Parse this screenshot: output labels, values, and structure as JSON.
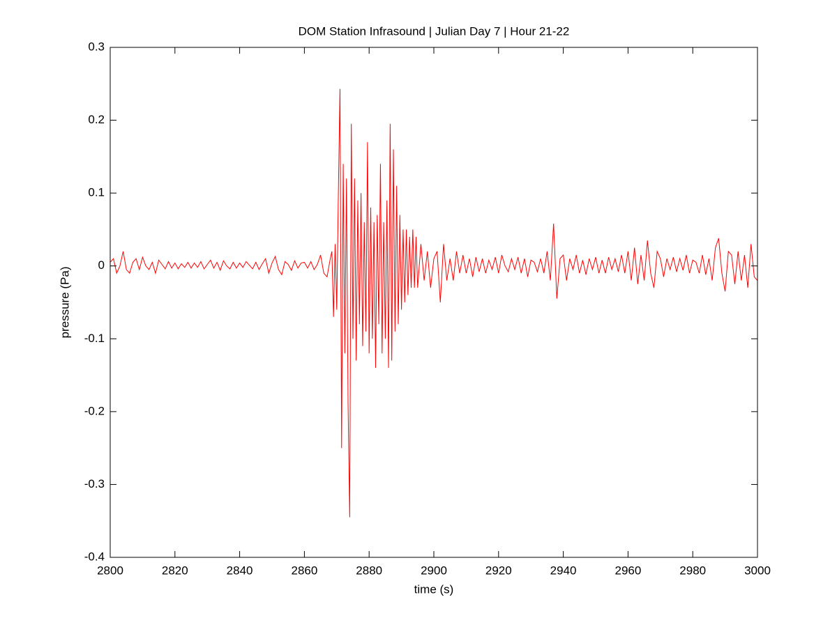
{
  "chart_data": {
    "type": "line",
    "title": "DOM Station Infrasound | Julian Day 7 | Hour 21-22",
    "xlabel": "time (s)",
    "ylabel": "pressure (Pa)",
    "xlim": [
      2800,
      3000
    ],
    "ylim": [
      -0.4,
      0.3
    ],
    "xticks": [
      2800,
      2820,
      2840,
      2860,
      2880,
      2900,
      2920,
      2940,
      2960,
      2980,
      3000
    ],
    "yticks": [
      -0.4,
      -0.3,
      -0.2,
      -0.1,
      0,
      0.1,
      0.2,
      0.3
    ],
    "grid": false,
    "series": [
      {
        "color": "#ff0000",
        "x": [
          2800,
          2801,
          2802,
          2803,
          2804,
          2805,
          2806,
          2807,
          2808,
          2809,
          2810,
          2811,
          2812,
          2813,
          2814,
          2815,
          2816,
          2817,
          2818,
          2819,
          2820,
          2821,
          2822,
          2823,
          2824,
          2825,
          2826,
          2827,
          2828,
          2829,
          2830,
          2831,
          2832,
          2833,
          2834,
          2835,
          2836,
          2837,
          2838,
          2839,
          2840,
          2841,
          2842,
          2843,
          2844,
          2845,
          2846,
          2847,
          2848,
          2849,
          2850,
          2851,
          2852,
          2853,
          2854,
          2855,
          2856,
          2857,
          2858,
          2859,
          2860,
          2861,
          2862,
          2863,
          2864,
          2865,
          2866,
          2867,
          2868,
          2868.5,
          2869,
          2869.5,
          2870,
          2870.5,
          2871,
          2871.5,
          2872,
          2872.5,
          2873,
          2873.5,
          2874,
          2874.5,
          2875,
          2875.5,
          2876,
          2876.5,
          2877,
          2877.5,
          2878,
          2878.5,
          2879,
          2879.5,
          2880,
          2880.5,
          2881,
          2881.5,
          2882,
          2882.5,
          2883,
          2883.5,
          2884,
          2884.5,
          2885,
          2885.5,
          2886,
          2886.5,
          2887,
          2887.5,
          2888,
          2888.5,
          2889,
          2889.5,
          2890,
          2890.5,
          2891,
          2891.5,
          2892,
          2892.5,
          2893,
          2893.5,
          2894,
          2894.5,
          2895,
          2896,
          2897,
          2898,
          2899,
          2900,
          2901,
          2902,
          2903,
          2904,
          2905,
          2906,
          2907,
          2908,
          2909,
          2910,
          2911,
          2912,
          2913,
          2914,
          2915,
          2916,
          2917,
          2918,
          2919,
          2920,
          2921,
          2922,
          2923,
          2924,
          2925,
          2926,
          2927,
          2928,
          2929,
          2930,
          2931,
          2932,
          2933,
          2934,
          2935,
          2936,
          2937,
          2938,
          2939,
          2940,
          2941,
          2942,
          2943,
          2944,
          2945,
          2946,
          2947,
          2948,
          2949,
          2950,
          2951,
          2952,
          2953,
          2954,
          2955,
          2956,
          2957,
          2958,
          2959,
          2960,
          2961,
          2962,
          2963,
          2964,
          2965,
          2966,
          2967,
          2968,
          2969,
          2970,
          2971,
          2972,
          2973,
          2974,
          2975,
          2976,
          2977,
          2978,
          2979,
          2980,
          2981,
          2982,
          2983,
          2984,
          2985,
          2986,
          2987,
          2988,
          2989,
          2990,
          2991,
          2992,
          2993,
          2994,
          2995,
          2996,
          2997,
          2998,
          2999,
          3000
        ],
        "values": [
          0.005,
          0.01,
          -0.01,
          0.0,
          0.02,
          -0.005,
          -0.01,
          0.005,
          0.01,
          -0.005,
          0.012,
          0.0,
          -0.005,
          0.005,
          -0.01,
          0.008,
          0.002,
          -0.004,
          0.006,
          -0.003,
          0.004,
          -0.004,
          0.003,
          -0.002,
          0.005,
          -0.003,
          0.004,
          -0.002,
          0.006,
          -0.004,
          0.002,
          0.008,
          -0.003,
          0.005,
          -0.006,
          0.007,
          0.0,
          -0.004,
          0.005,
          -0.003,
          0.004,
          -0.002,
          0.006,
          0.001,
          -0.004,
          0.005,
          -0.005,
          0.003,
          0.01,
          -0.01,
          0.004,
          0.013,
          -0.005,
          -0.012,
          0.006,
          0.002,
          -0.006,
          0.007,
          -0.003,
          0.004,
          0.005,
          -0.003,
          0.006,
          -0.005,
          0.002,
          0.015,
          -0.01,
          -0.015,
          0.01,
          0.02,
          -0.07,
          0.03,
          -0.06,
          0.1,
          0.243,
          -0.25,
          0.14,
          -0.12,
          0.12,
          -0.19,
          -0.345,
          0.195,
          -0.1,
          0.12,
          -0.13,
          0.09,
          -0.08,
          0.1,
          -0.11,
          0.06,
          -0.09,
          0.17,
          -0.12,
          0.08,
          -0.1,
          0.06,
          -0.14,
          0.07,
          -0.08,
          0.14,
          -0.12,
          0.06,
          -0.1,
          0.09,
          -0.14,
          0.195,
          -0.13,
          0.16,
          -0.09,
          0.11,
          -0.08,
          0.07,
          -0.06,
          0.05,
          -0.05,
          0.05,
          -0.04,
          0.04,
          -0.03,
          0.05,
          -0.03,
          0.04,
          -0.03,
          0.03,
          -0.02,
          0.02,
          -0.03,
          0.01,
          0.02,
          -0.05,
          0.03,
          -0.02,
          0.01,
          -0.02,
          0.02,
          -0.01,
          0.015,
          -0.01,
          0.01,
          -0.015,
          0.012,
          -0.008,
          0.01,
          -0.01,
          0.008,
          -0.005,
          0.012,
          -0.01,
          0.015,
          0.0,
          -0.008,
          0.01,
          -0.005,
          0.012,
          -0.01,
          0.01,
          -0.015,
          0.008,
          0.005,
          -0.008,
          0.01,
          -0.01,
          0.02,
          -0.02,
          0.058,
          -0.045,
          0.01,
          0.015,
          -0.02,
          0.01,
          -0.005,
          0.015,
          -0.01,
          0.008,
          -0.012,
          0.01,
          -0.005,
          0.012,
          -0.01,
          0.008,
          -0.01,
          0.012,
          -0.005,
          0.01,
          -0.008,
          0.015,
          -0.01,
          0.02,
          -0.02,
          0.025,
          -0.025,
          0.015,
          -0.02,
          0.035,
          -0.01,
          -0.03,
          0.02,
          0.01,
          -0.015,
          0.01,
          -0.005,
          0.012,
          -0.008,
          0.01,
          -0.006,
          0.015,
          -0.01,
          0.008,
          0.005,
          -0.01,
          0.015,
          -0.012,
          0.01,
          -0.02,
          0.025,
          0.038,
          -0.01,
          -0.035,
          0.02,
          0.015,
          -0.025,
          0.02,
          -0.02,
          0.015,
          -0.03,
          0.03,
          -0.015,
          -0.02
        ]
      }
    ]
  }
}
